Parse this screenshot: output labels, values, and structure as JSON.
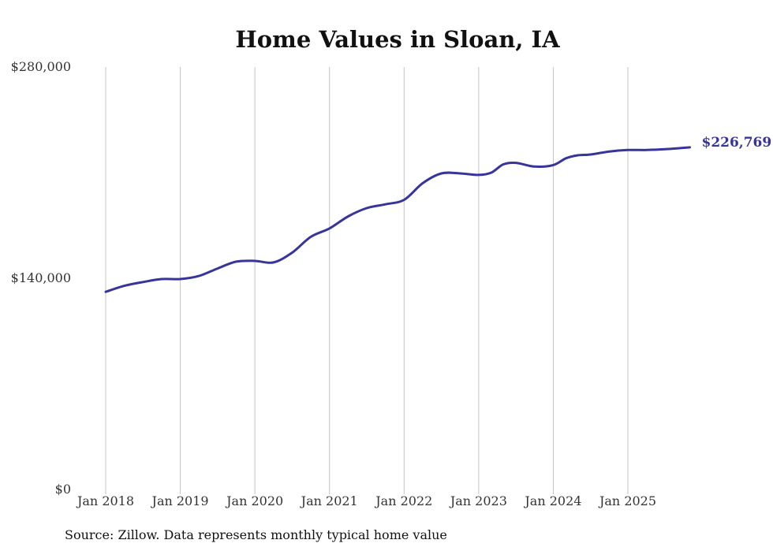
{
  "chart_data": {
    "type": "line",
    "title": "Home Values in Sloan, IA",
    "xlabel": "",
    "ylabel": "",
    "ylim": [
      0,
      280000
    ],
    "y_ticks": [
      {
        "value": 0,
        "label": "$0"
      },
      {
        "value": 140000,
        "label": "$140,000"
      },
      {
        "value": 280000,
        "label": "$280,000"
      }
    ],
    "x_ticks": [
      {
        "value": 2018.0,
        "label": "Jan 2018"
      },
      {
        "value": 2019.0,
        "label": "Jan 2019"
      },
      {
        "value": 2020.0,
        "label": "Jan 2020"
      },
      {
        "value": 2021.0,
        "label": "Jan 2021"
      },
      {
        "value": 2022.0,
        "label": "Jan 2022"
      },
      {
        "value": 2023.0,
        "label": "Jan 2023"
      },
      {
        "value": 2024.0,
        "label": "Jan 2024"
      },
      {
        "value": 2025.0,
        "label": "Jan 2025"
      }
    ],
    "xlim": [
      2018.0,
      2025.83
    ],
    "grid": "vertical",
    "series": [
      {
        "name": "Typical home value",
        "color": "#37349a",
        "x": [
          2018.0,
          2018.25,
          2018.5,
          2018.75,
          2019.0,
          2019.25,
          2019.5,
          2019.75,
          2020.0,
          2020.25,
          2020.5,
          2020.75,
          2021.0,
          2021.25,
          2021.5,
          2021.75,
          2022.0,
          2022.25,
          2022.5,
          2022.75,
          2023.0,
          2023.17,
          2023.33,
          2023.5,
          2023.75,
          2024.0,
          2024.17,
          2024.33,
          2024.5,
          2024.75,
          2025.0,
          2025.25,
          2025.5,
          2025.83
        ],
        "values": [
          131000,
          135000,
          137500,
          139500,
          139500,
          141500,
          146500,
          151000,
          151500,
          150500,
          157000,
          167500,
          173000,
          181000,
          186500,
          189000,
          192000,
          203000,
          209500,
          209500,
          208500,
          210000,
          215500,
          216500,
          214000,
          215000,
          219500,
          221500,
          222000,
          224000,
          225000,
          225000,
          225500,
          226769
        ]
      }
    ],
    "end_label": "$226,769",
    "annotations": [
      "$226,769"
    ]
  },
  "footer": {
    "source": "Source: Zillow. Data represents monthly typical home value"
  }
}
